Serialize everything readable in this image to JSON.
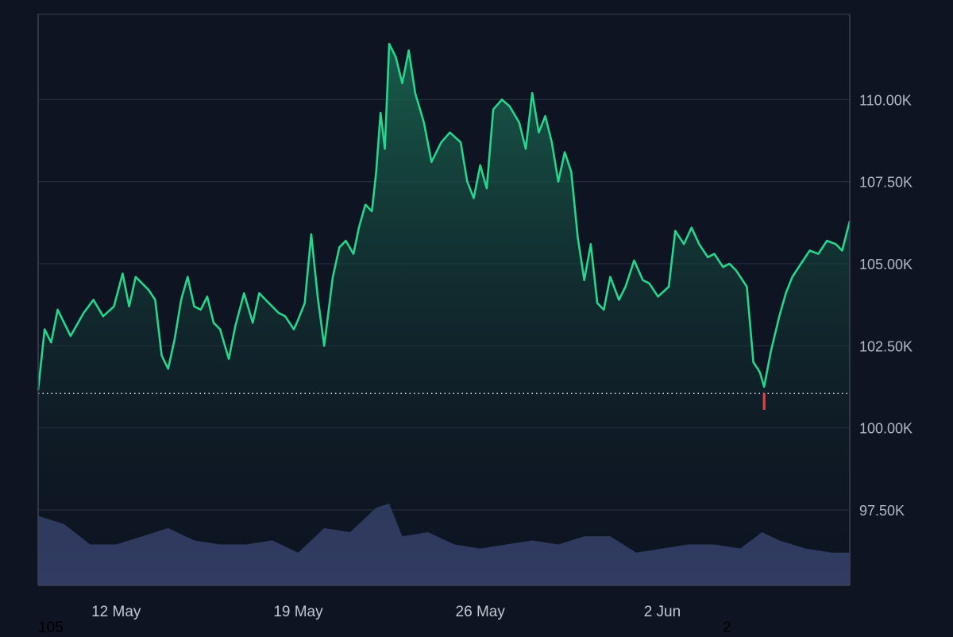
{
  "colors": {
    "background": "#0e1422",
    "grid": "#2b3245",
    "frame": "#3a4152",
    "price_line": "#26d68c",
    "area_top": "#1a6a52",
    "area_bottom": "#0f1d24",
    "volume": "#323c63",
    "low_marker": "#e5404a",
    "reference_line": "#d8dbe2",
    "tick_text": "#b3b8c4"
  },
  "stray_text": {
    "left": "105",
    "right": "2"
  },
  "chart_data": {
    "type": "area",
    "title": "",
    "xlabel": "",
    "ylabel": "",
    "x_ticks": [
      "12 May",
      "19 May",
      "26 May",
      "2 Jun"
    ],
    "y_ticks": [
      "97.50K",
      "100.00K",
      "102.50K",
      "105.00K",
      "107.50K",
      "110.00K"
    ],
    "ylim": [
      95200,
      112600
    ],
    "xlim": [
      "2025-05-09T00:00",
      "2025-06-09T05:00"
    ],
    "grid": true,
    "reference_level": 101050,
    "low_marker": {
      "x": "2025-06-05T22:00",
      "low": 100550
    },
    "series": [
      {
        "x": [
          "2025-05-09T00:00",
          "2025-05-09T06:00",
          "2025-05-09T12:00",
          "2025-05-09T18:00",
          "2025-05-10T06:00",
          "2025-05-10T18:00",
          "2025-05-11T03:00",
          "2025-05-11T12:00",
          "2025-05-11T22:00",
          "2025-05-12T06:00",
          "2025-05-12T12:00",
          "2025-05-12T18:00",
          "2025-05-13T00:00",
          "2025-05-13T06:00",
          "2025-05-13T12:00",
          "2025-05-13T18:00",
          "2025-05-14T00:00",
          "2025-05-14T06:00",
          "2025-05-14T12:00",
          "2025-05-14T18:00",
          "2025-05-15T00:00",
          "2025-05-15T06:00",
          "2025-05-15T12:00",
          "2025-05-15T18:00",
          "2025-05-16T00:00",
          "2025-05-16T08:00",
          "2025-05-16T14:00",
          "2025-05-16T22:00",
          "2025-05-17T06:00",
          "2025-05-17T12:00",
          "2025-05-17T18:00",
          "2025-05-18T06:00",
          "2025-05-18T12:00",
          "2025-05-18T20:00",
          "2025-05-19T00:00",
          "2025-05-19T06:00",
          "2025-05-19T12:00",
          "2025-05-19T18:00",
          "2025-05-20T00:00",
          "2025-05-20T08:00",
          "2025-05-20T14:00",
          "2025-05-20T20:00",
          "2025-05-21T03:00",
          "2025-05-21T08:00",
          "2025-05-21T14:00",
          "2025-05-21T20:00",
          "2025-05-22T00:00",
          "2025-05-22T04:00",
          "2025-05-22T08:00",
          "2025-05-22T12:00",
          "2025-05-22T18:00",
          "2025-05-23T00:00",
          "2025-05-23T06:00",
          "2025-05-23T12:00",
          "2025-05-23T20:00",
          "2025-05-24T03:00",
          "2025-05-24T12:00",
          "2025-05-24T20:00",
          "2025-05-25T06:00",
          "2025-05-25T12:00",
          "2025-05-25T18:00",
          "2025-05-26T00:00",
          "2025-05-26T06:00",
          "2025-05-26T12:00",
          "2025-05-26T20:00",
          "2025-05-27T03:00",
          "2025-05-27T12:00",
          "2025-05-27T18:00",
          "2025-05-28T00:00",
          "2025-05-28T06:00",
          "2025-05-28T12:00",
          "2025-05-28T18:00",
          "2025-05-29T00:00",
          "2025-05-29T06:00",
          "2025-05-29T12:00",
          "2025-05-29T18:00",
          "2025-05-30T00:00",
          "2025-05-30T06:00",
          "2025-05-30T12:00",
          "2025-05-30T18:00",
          "2025-05-31T00:00",
          "2025-05-31T08:00",
          "2025-05-31T14:00",
          "2025-05-31T22:00",
          "2025-06-01T06:00",
          "2025-06-01T12:00",
          "2025-06-01T20:00",
          "2025-06-02T06:00",
          "2025-06-02T12:00",
          "2025-06-02T20:00",
          "2025-06-03T03:00",
          "2025-06-03T10:00",
          "2025-06-03T18:00",
          "2025-06-04T00:00",
          "2025-06-04T08:00",
          "2025-06-04T14:00",
          "2025-06-04T20:00",
          "2025-06-05T06:00",
          "2025-06-05T12:00",
          "2025-06-05T18:00",
          "2025-06-05T22:00",
          "2025-06-06T04:00",
          "2025-06-06T12:00",
          "2025-06-06T18:00",
          "2025-06-07T00:00",
          "2025-06-07T08:00",
          "2025-06-07T16:00",
          "2025-06-08T00:00",
          "2025-06-08T08:00",
          "2025-06-08T16:00",
          "2025-06-08T22:00",
          "2025-06-09T05:00"
        ],
        "values": [
          101150,
          103000,
          102600,
          103600,
          102800,
          103500,
          103900,
          103400,
          103700,
          104700,
          103700,
          104600,
          104400,
          104200,
          103900,
          102200,
          101800,
          102700,
          103900,
          104600,
          103700,
          103600,
          104000,
          103200,
          103000,
          102100,
          103100,
          104100,
          103200,
          104100,
          103900,
          103500,
          103400,
          103000,
          103300,
          103800,
          105900,
          104000,
          102500,
          104600,
          105500,
          105700,
          105300,
          106100,
          106800,
          106600,
          107800,
          109600,
          108500,
          111700,
          111300,
          110500,
          111500,
          110200,
          109300,
          108100,
          108700,
          109000,
          108700,
          107500,
          107000,
          108000,
          107300,
          109700,
          110000,
          109800,
          109300,
          108500,
          110200,
          109000,
          109500,
          108700,
          107500,
          108400,
          107800,
          105800,
          104500,
          105600,
          103800,
          103600,
          104600,
          103900,
          104300,
          105100,
          104500,
          104400,
          104000,
          104300,
          106000,
          105600,
          106100,
          105600,
          105200,
          105300,
          104900,
          105000,
          104800,
          104300,
          102000,
          101700,
          101250,
          102300,
          103400,
          104100,
          104600,
          105000,
          105400,
          105300,
          105700,
          105600,
          105400,
          106300
        ]
      }
    ],
    "volume": {
      "x": [
        "2025-05-09T00:00",
        "2025-05-10T00:00",
        "2025-05-11T00:00",
        "2025-05-12T00:00",
        "2025-05-13T00:00",
        "2025-05-14T00:00",
        "2025-05-15T00:00",
        "2025-05-16T00:00",
        "2025-05-17T00:00",
        "2025-05-18T00:00",
        "2025-05-19T00:00",
        "2025-05-20T00:00",
        "2025-05-21T00:00",
        "2025-05-22T00:00",
        "2025-05-22T12:00",
        "2025-05-23T00:00",
        "2025-05-24T00:00",
        "2025-05-25T00:00",
        "2025-05-26T00:00",
        "2025-05-27T00:00",
        "2025-05-28T00:00",
        "2025-05-29T00:00",
        "2025-05-30T00:00",
        "2025-05-31T00:00",
        "2025-06-01T00:00",
        "2025-06-02T00:00",
        "2025-06-03T00:00",
        "2025-06-04T00:00",
        "2025-06-05T00:00",
        "2025-06-05T20:00",
        "2025-06-06T12:00",
        "2025-06-07T12:00",
        "2025-06-08T12:00",
        "2025-06-09T05:00"
      ],
      "values": [
        1.7,
        1.5,
        1.0,
        1.0,
        1.2,
        1.4,
        1.1,
        1.0,
        1.0,
        1.1,
        0.8,
        1.4,
        1.3,
        1.9,
        2.0,
        1.2,
        1.3,
        1.0,
        0.9,
        1.0,
        1.1,
        1.0,
        1.2,
        1.2,
        0.8,
        0.9,
        1.0,
        1.0,
        0.9,
        1.3,
        1.1,
        0.9,
        0.8,
        0.8
      ]
    }
  }
}
